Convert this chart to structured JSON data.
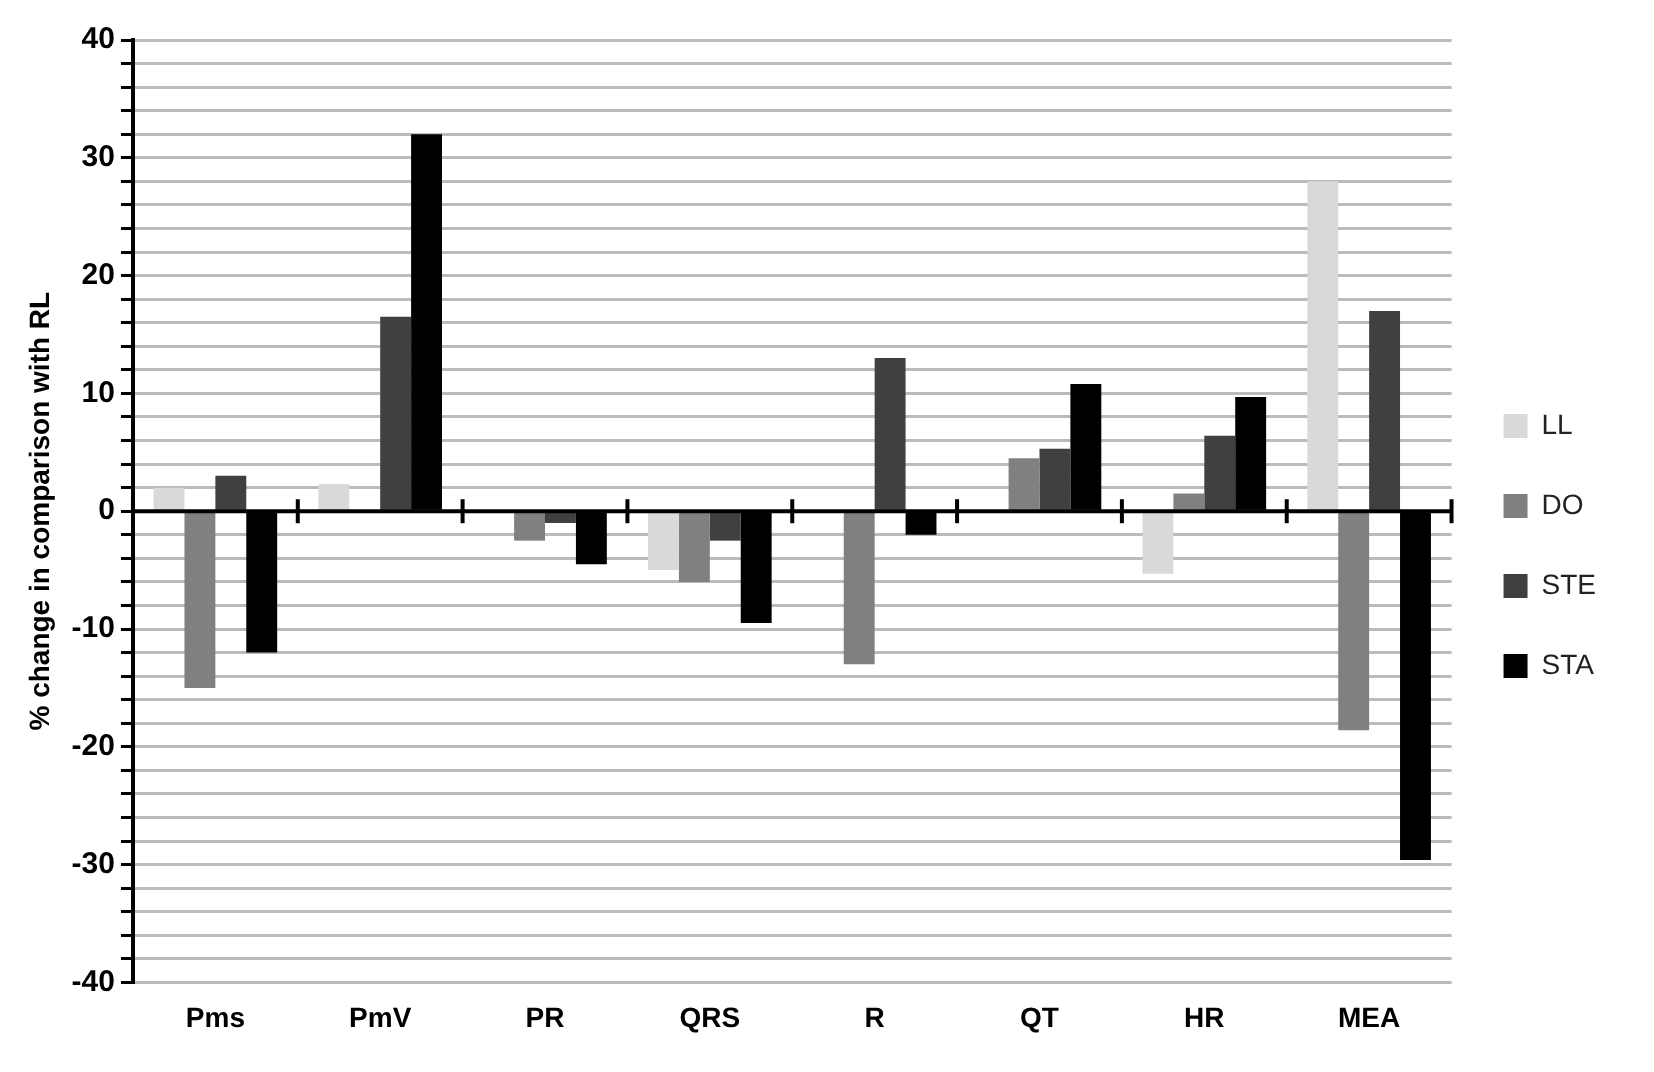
{
  "chart_data": {
    "type": "bar",
    "ylabel": "% change in comparison with RL",
    "categories": [
      "Pms",
      "PmV",
      "PR",
      "QRS",
      "R",
      "QT",
      "HR",
      "MEA"
    ],
    "series": [
      {
        "name": "LL",
        "color": "#d9d9d9",
        "values": [
          2,
          2.3,
          0,
          -5,
          null,
          null,
          -5.3,
          28
        ]
      },
      {
        "name": "DO",
        "color": "#808080",
        "values": [
          -15,
          0,
          -2.5,
          -6,
          -13,
          4.5,
          1.5,
          -18.6
        ]
      },
      {
        "name": "STE",
        "color": "#404040",
        "values": [
          3,
          16.5,
          -1,
          -2.5,
          13,
          5.3,
          6.4,
          17
        ]
      },
      {
        "name": "STA",
        "color": "#000000",
        "values": [
          -12,
          32,
          -4.5,
          -9.5,
          -2,
          10.8,
          9.7,
          -29.6
        ]
      }
    ],
    "ylim": [
      -40,
      40
    ],
    "yticks": [
      -40,
      {
        "value": -38,
        "label": null
      },
      {
        "value": -36,
        "label": null
      },
      {
        "value": -34,
        "label": null
      },
      {
        "value": -32,
        "label": null
      },
      -30,
      {
        "value": -28,
        "label": null
      },
      {
        "value": -26,
        "label": null
      },
      {
        "value": -24,
        "label": null
      },
      {
        "value": -22,
        "label": null
      },
      -20,
      {
        "value": -18,
        "label": null
      },
      {
        "value": -16,
        "label": null
      },
      {
        "value": -14,
        "label": null
      },
      {
        "value": -12,
        "label": null
      },
      -10,
      {
        "value": -8,
        "label": null
      },
      {
        "value": -6,
        "label": null
      },
      {
        "value": -4,
        "label": null
      },
      {
        "value": -2,
        "label": null
      },
      0,
      {
        "value": 2,
        "label": null
      },
      {
        "value": 4,
        "label": null
      },
      {
        "value": 6,
        "label": null
      },
      {
        "value": 8,
        "label": null
      },
      10,
      {
        "value": 12,
        "label": null
      },
      {
        "value": 14,
        "label": null
      },
      {
        "value": 16,
        "label": null
      },
      {
        "value": 18,
        "label": null
      },
      20,
      {
        "value": 22,
        "label": null
      },
      {
        "value": 24,
        "label": null
      },
      {
        "value": 26,
        "label": null
      },
      {
        "value": 28,
        "label": null
      },
      30,
      {
        "value": 32,
        "label": null
      },
      {
        "value": 34,
        "label": null
      },
      {
        "value": 36,
        "label": null
      },
      {
        "value": 38,
        "label": null
      },
      40
    ],
    "grid": "y",
    "legend": "right"
  }
}
